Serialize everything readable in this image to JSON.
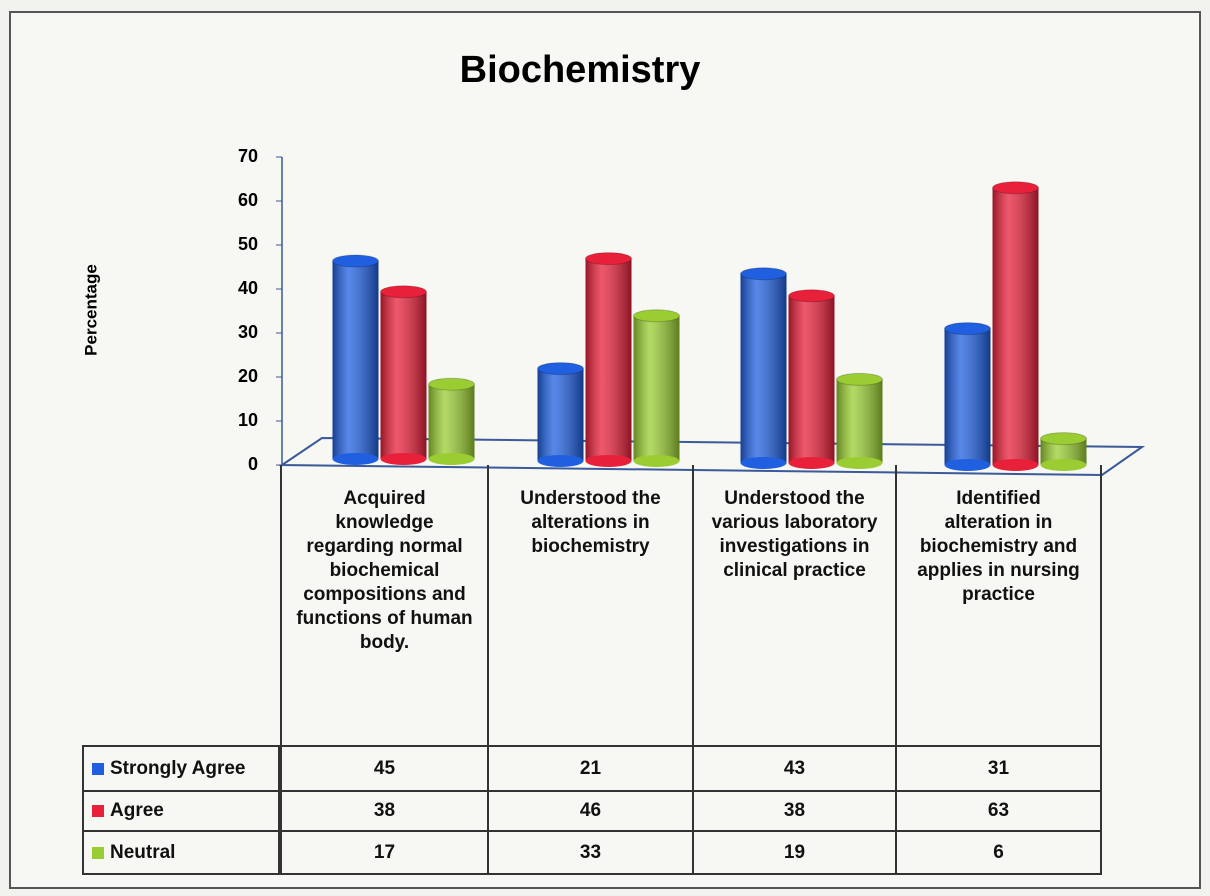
{
  "chart_data": {
    "type": "bar",
    "title": "Biochemistry",
    "ylabel": "Percentage",
    "categories": [
      "Acquired knowledge regarding normal biochemical compositions and functions of human body.",
      "Understood the alterations in biochemistry",
      "Understood the various laboratory investigations in clinical practice",
      "Identified alteration in biochemistry and applies in nursing practice"
    ],
    "series": [
      {
        "name": "Strongly Agree",
        "color": "#1f5fe0",
        "values": [
          45,
          21,
          43,
          31
        ]
      },
      {
        "name": "Agree",
        "color": "#e8203a",
        "values": [
          38,
          46,
          38,
          63
        ]
      },
      {
        "name": "Neutral",
        "color": "#9acd32",
        "values": [
          17,
          33,
          19,
          6
        ]
      }
    ],
    "ylim": [
      0,
      70
    ],
    "yticks": [
      0,
      10,
      20,
      30,
      40,
      50,
      60,
      70
    ]
  }
}
